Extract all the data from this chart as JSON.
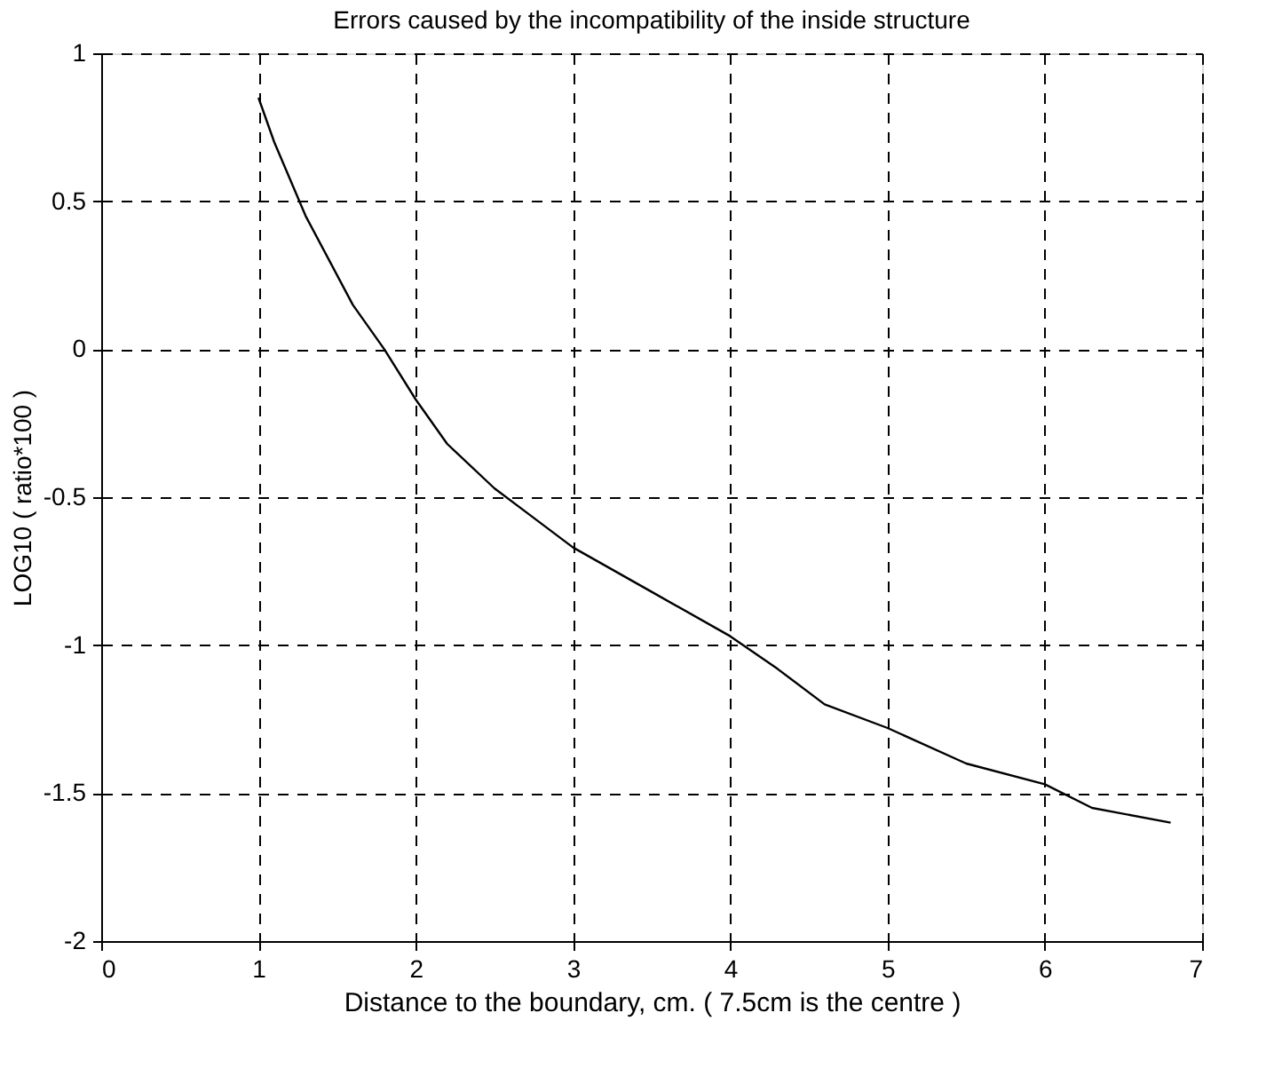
{
  "chart_data": {
    "type": "line",
    "title": "Errors caused by the incompatibility of the inside structure",
    "xlabel": "Distance to the boundary, cm. ( 7.5cm is the centre )",
    "ylabel": "LOG10 ( ratio*100 )",
    "x": [
      1.0,
      1.1,
      1.3,
      1.6,
      1.8,
      2.0,
      2.2,
      2.5,
      2.7,
      3.0,
      3.5,
      4.0,
      4.3,
      4.6,
      5.0,
      5.5,
      6.0,
      6.3,
      6.8
    ],
    "series": [
      {
        "color": "#000000",
        "values": [
          0.85,
          0.7,
          0.45,
          0.15,
          0.0,
          -0.17,
          -0.32,
          -0.47,
          -0.55,
          -0.67,
          -0.82,
          -0.97,
          -1.08,
          -1.2,
          -1.28,
          -1.4,
          -1.47,
          -1.55,
          -1.6
        ]
      }
    ],
    "xlim": [
      0,
      7
    ],
    "xticks": [
      0,
      1,
      2,
      3,
      4,
      5,
      6,
      7
    ],
    "ylim": [
      -2,
      1
    ],
    "yticks": [
      -2,
      -1.5,
      -1,
      -0.5,
      0,
      0.5,
      1
    ],
    "grid": true,
    "line_style": "solid",
    "legend": false
  }
}
